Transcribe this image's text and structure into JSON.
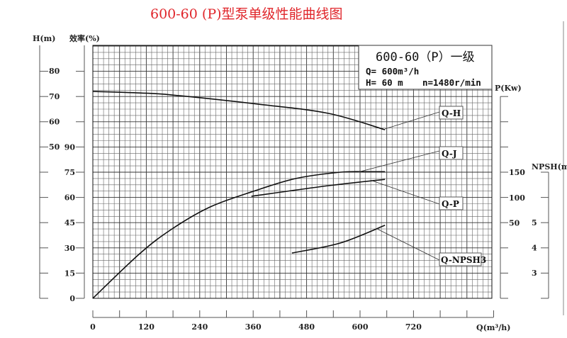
{
  "chart_data": {
    "type": "line",
    "title": "600-60 (P)型泵单级性能曲线图",
    "info_box": {
      "model": "600-60（P）一级",
      "flow": "Q= 600m³/h",
      "head": "H= 60 m",
      "speed": "n=1480r/min"
    },
    "xlabel": "Q(m³/h)",
    "xlim": [
      0,
      900
    ],
    "x_ticks": [
      0,
      120,
      240,
      360,
      480,
      600,
      720
    ],
    "axes": {
      "head": {
        "label": "H(m)",
        "ticks": [
          "80",
          "70",
          "60",
          "50"
        ],
        "unit_range": [
          0,
          90
        ]
      },
      "efficiency": {
        "label": "效率(%)",
        "ticks": [
          "90",
          "75",
          "60",
          "45",
          "30",
          "15",
          "0"
        ],
        "unit_range": [
          0,
          100
        ]
      },
      "power": {
        "label": "P(Kw)",
        "ticks": [
          "150",
          "100",
          "50"
        ]
      },
      "npsh": {
        "label": "NPSH(m)",
        "ticks": [
          "5",
          "4",
          "3"
        ]
      }
    },
    "grid": true,
    "series": [
      {
        "name": "Q-H",
        "axis": "head",
        "x": [
          0,
          105,
          178,
          369,
          529,
          656
        ],
        "y": [
          71.9,
          71.3,
          70.5,
          66.9,
          63.2,
          56.7
        ]
      },
      {
        "name": "Q-J",
        "axis": "efficiency",
        "x": [
          0,
          105,
          178,
          264,
          360,
          455,
          556,
          616,
          656
        ],
        "y": [
          0,
          26.5,
          41.3,
          54.4,
          63.6,
          71.2,
          75,
          75.3,
          75.3
        ]
      },
      {
        "name": "Q-P",
        "axis": "power",
        "x": [
          356,
          529,
          656
        ],
        "y": [
          102.5,
          123.6,
          136
        ]
      },
      {
        "name": "Q-NPSH3",
        "axis": "npsh",
        "x": [
          447,
          556,
          656
        ],
        "y": [
          3.79,
          4.19,
          4.89
        ]
      }
    ]
  }
}
